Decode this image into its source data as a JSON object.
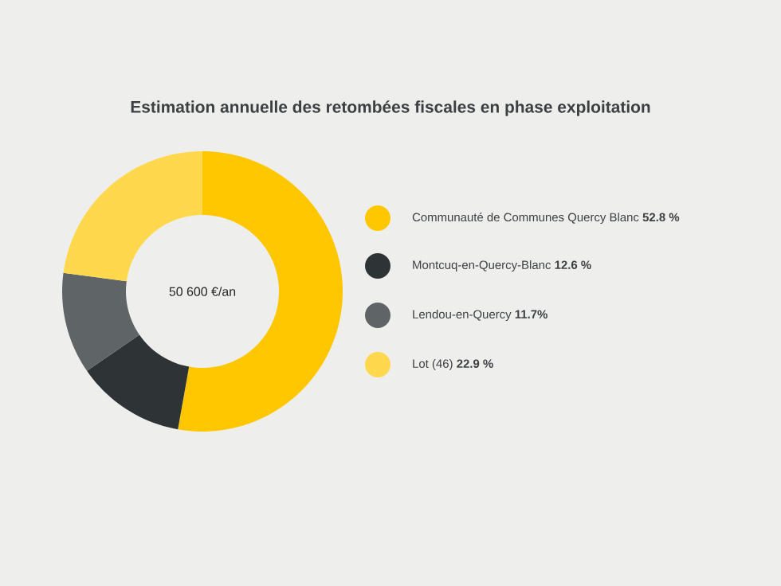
{
  "chart_data": {
    "type": "donut",
    "title": "Estimation annuelle des retombées fiscales en phase exploitation",
    "categories": [
      "Communauté de Communes Quercy Blanc",
      "Montcuq-en-Quercy-Blanc",
      "Lendou-en-Quercy",
      "Lot (46)"
    ],
    "values": [
      52.8,
      12.6,
      11.7,
      22.9
    ],
    "value_labels": [
      "52.8 %",
      "12.6 %",
      "11.7%",
      "22.9 %"
    ],
    "colors": [
      "#ffc700",
      "#2e3436",
      "#5f6467",
      "#ffd84d"
    ],
    "annotations": [
      "50 600 €/an"
    ],
    "legend": "right"
  }
}
